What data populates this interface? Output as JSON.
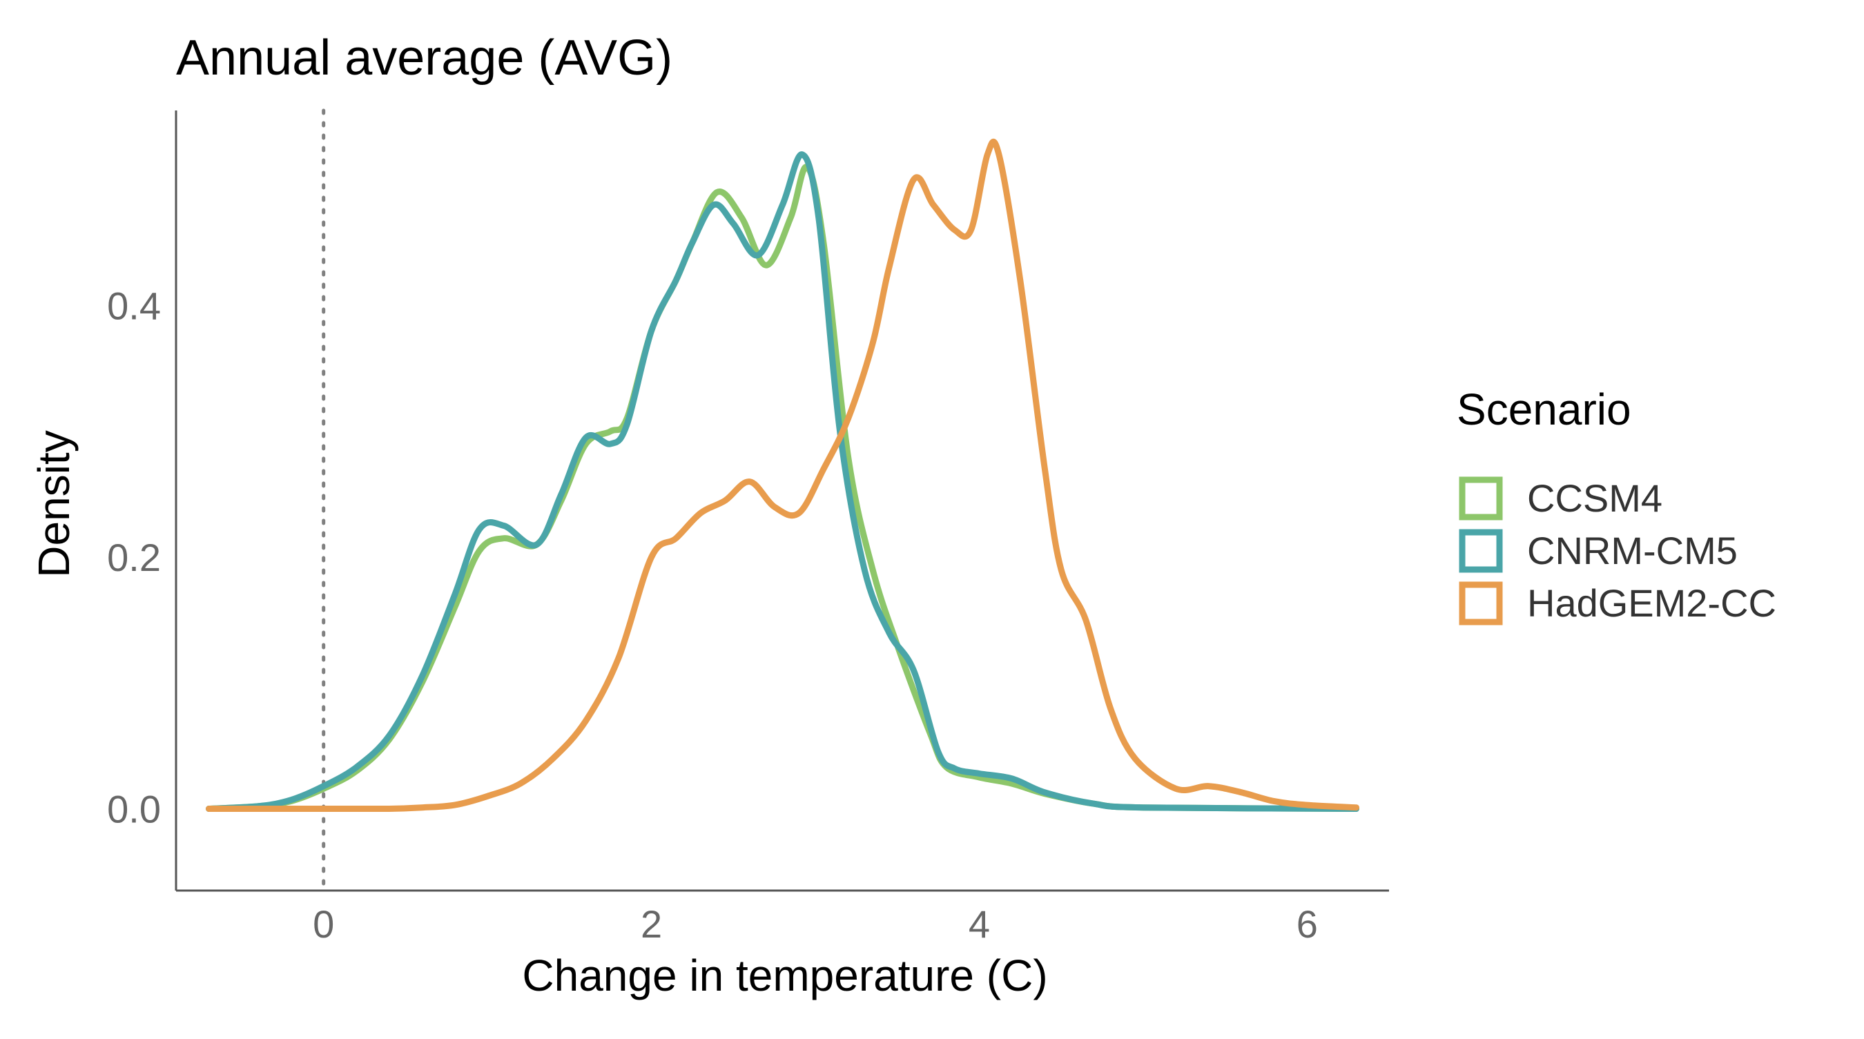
{
  "chart_data": {
    "type": "line",
    "title": "Annual average (AVG)",
    "xlabel": "Change in temperature (C)",
    "ylabel": "Density",
    "xlim": [
      -0.9,
      6.5
    ],
    "ylim": [
      -0.065,
      0.555
    ],
    "x_ticks": [
      0,
      2,
      4,
      6
    ],
    "x_tick_labels": [
      "0",
      "2",
      "4",
      "6"
    ],
    "y_ticks": [
      0.0,
      0.2,
      0.4
    ],
    "y_tick_labels": [
      "0.0",
      "0.2",
      "0.4"
    ],
    "reference_line": {
      "x": 0,
      "style": "dotted",
      "color": "#808080"
    },
    "grid": false,
    "legend": {
      "title": "Scenario",
      "position": "right"
    },
    "series": [
      {
        "name": "CCSM4",
        "color": "#8dc66a",
        "points": [
          [
            -0.7,
            0.0
          ],
          [
            -0.4,
            0.002
          ],
          [
            -0.2,
            0.006
          ],
          [
            0.0,
            0.016
          ],
          [
            0.2,
            0.03
          ],
          [
            0.4,
            0.055
          ],
          [
            0.6,
            0.1
          ],
          [
            0.8,
            0.16
          ],
          [
            0.95,
            0.205
          ],
          [
            1.1,
            0.215
          ],
          [
            1.3,
            0.21
          ],
          [
            1.45,
            0.245
          ],
          [
            1.6,
            0.29
          ],
          [
            1.75,
            0.3
          ],
          [
            1.85,
            0.31
          ],
          [
            2.0,
            0.38
          ],
          [
            2.15,
            0.42
          ],
          [
            2.25,
            0.45
          ],
          [
            2.4,
            0.49
          ],
          [
            2.55,
            0.47
          ],
          [
            2.7,
            0.432
          ],
          [
            2.85,
            0.47
          ],
          [
            2.95,
            0.51
          ],
          [
            3.05,
            0.45
          ],
          [
            3.2,
            0.28
          ],
          [
            3.35,
            0.19
          ],
          [
            3.5,
            0.13
          ],
          [
            3.7,
            0.06
          ],
          [
            3.8,
            0.033
          ],
          [
            4.0,
            0.025
          ],
          [
            4.2,
            0.02
          ],
          [
            4.4,
            0.012
          ],
          [
            4.7,
            0.004
          ],
          [
            5.0,
            0.001
          ],
          [
            6.3,
            0.0
          ]
        ]
      },
      {
        "name": "CNRM-CM5",
        "color": "#4aa5a8",
        "points": [
          [
            -0.7,
            0.0
          ],
          [
            -0.4,
            0.002
          ],
          [
            -0.2,
            0.007
          ],
          [
            0.0,
            0.018
          ],
          [
            0.2,
            0.033
          ],
          [
            0.4,
            0.058
          ],
          [
            0.6,
            0.105
          ],
          [
            0.8,
            0.17
          ],
          [
            0.95,
            0.222
          ],
          [
            1.1,
            0.225
          ],
          [
            1.3,
            0.21
          ],
          [
            1.45,
            0.25
          ],
          [
            1.6,
            0.295
          ],
          [
            1.75,
            0.29
          ],
          [
            1.85,
            0.305
          ],
          [
            2.0,
            0.38
          ],
          [
            2.15,
            0.42
          ],
          [
            2.25,
            0.45
          ],
          [
            2.38,
            0.48
          ],
          [
            2.5,
            0.465
          ],
          [
            2.65,
            0.44
          ],
          [
            2.8,
            0.48
          ],
          [
            2.92,
            0.52
          ],
          [
            3.02,
            0.47
          ],
          [
            3.15,
            0.3
          ],
          [
            3.3,
            0.19
          ],
          [
            3.45,
            0.14
          ],
          [
            3.6,
            0.11
          ],
          [
            3.75,
            0.045
          ],
          [
            3.85,
            0.032
          ],
          [
            4.0,
            0.028
          ],
          [
            4.2,
            0.024
          ],
          [
            4.4,
            0.013
          ],
          [
            4.7,
            0.004
          ],
          [
            5.0,
            0.001
          ],
          [
            6.3,
            0.0
          ]
        ]
      },
      {
        "name": "HadGEM2-CC",
        "color": "#e89c4d",
        "points": [
          [
            -0.7,
            0.0
          ],
          [
            0.0,
            0.0
          ],
          [
            0.4,
            0.0
          ],
          [
            0.6,
            0.001
          ],
          [
            0.8,
            0.003
          ],
          [
            1.0,
            0.01
          ],
          [
            1.2,
            0.02
          ],
          [
            1.4,
            0.04
          ],
          [
            1.6,
            0.07
          ],
          [
            1.8,
            0.12
          ],
          [
            2.0,
            0.2
          ],
          [
            2.15,
            0.215
          ],
          [
            2.3,
            0.235
          ],
          [
            2.45,
            0.245
          ],
          [
            2.6,
            0.26
          ],
          [
            2.75,
            0.24
          ],
          [
            2.9,
            0.235
          ],
          [
            3.05,
            0.27
          ],
          [
            3.2,
            0.31
          ],
          [
            3.35,
            0.37
          ],
          [
            3.45,
            0.43
          ],
          [
            3.6,
            0.5
          ],
          [
            3.72,
            0.48
          ],
          [
            3.85,
            0.46
          ],
          [
            3.95,
            0.46
          ],
          [
            4.05,
            0.52
          ],
          [
            4.12,
            0.52
          ],
          [
            4.25,
            0.42
          ],
          [
            4.4,
            0.27
          ],
          [
            4.5,
            0.19
          ],
          [
            4.65,
            0.15
          ],
          [
            4.8,
            0.08
          ],
          [
            4.95,
            0.04
          ],
          [
            5.2,
            0.016
          ],
          [
            5.4,
            0.018
          ],
          [
            5.6,
            0.013
          ],
          [
            5.8,
            0.006
          ],
          [
            6.0,
            0.003
          ],
          [
            6.3,
            0.001
          ]
        ]
      }
    ]
  }
}
